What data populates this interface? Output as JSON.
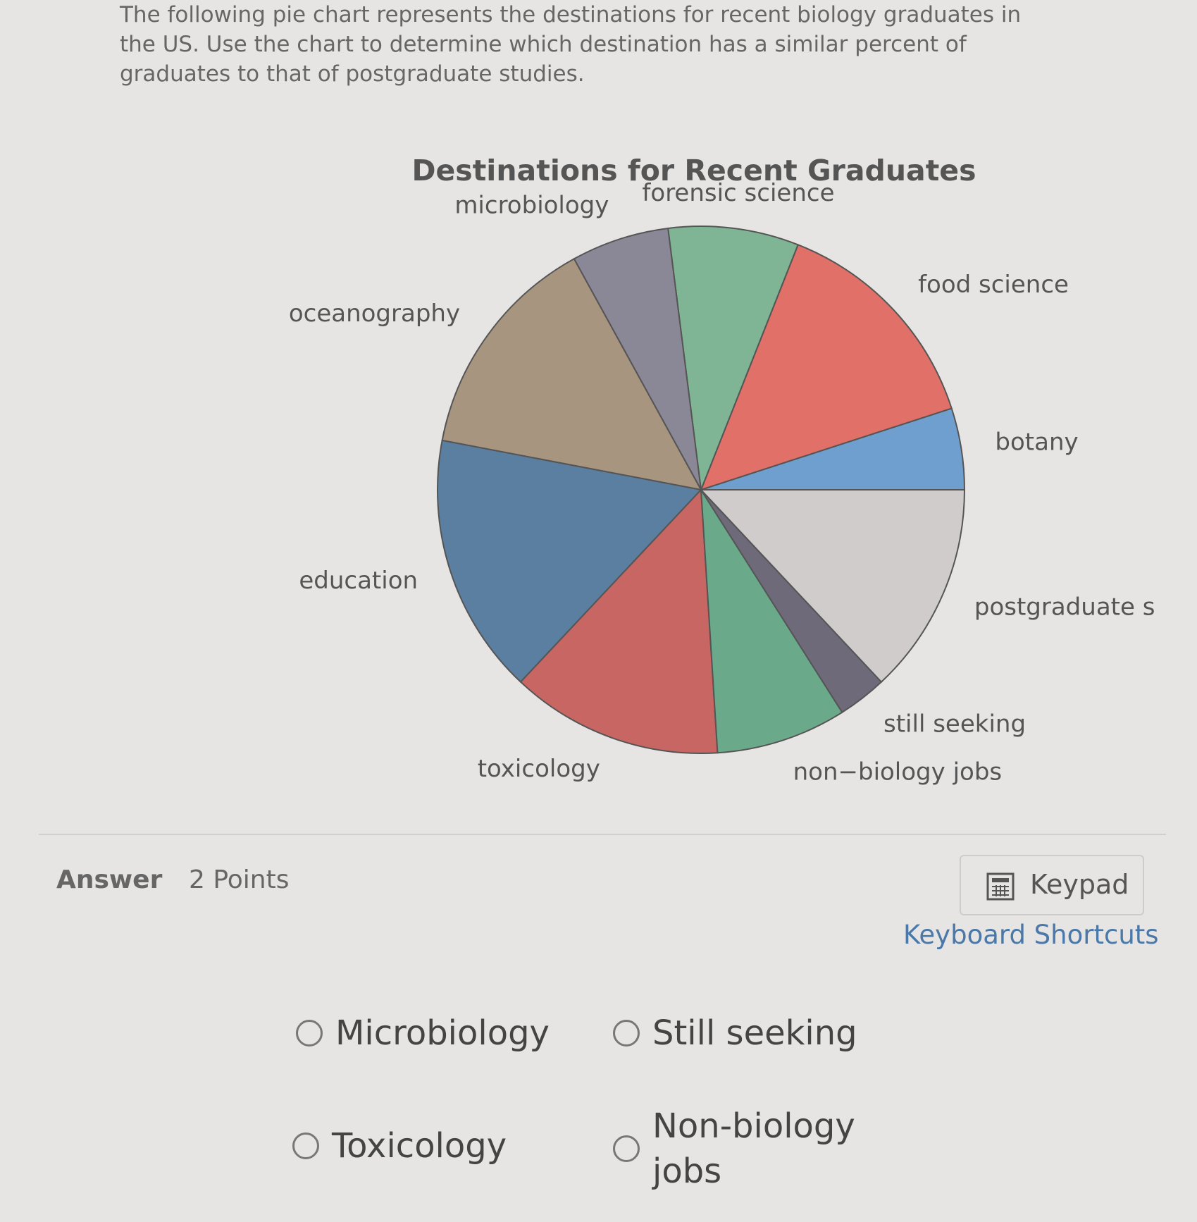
{
  "question": "The following pie chart represents the destinations for recent biology graduates in the US. Use the chart to determine which destination has a similar percent of graduates to that of postgraduate studies.",
  "chart_data": {
    "type": "pie",
    "title": "Destinations for Recent Graduates",
    "categories": [
      "botany",
      "food science",
      "forensic science",
      "microbiology",
      "oceanography",
      "education",
      "toxicology",
      "non−biology jobs",
      "still seeking",
      "postgraduate s"
    ],
    "values": [
      5,
      14,
      8,
      6,
      14,
      16,
      13,
      8,
      3,
      13
    ],
    "colors": [
      "#6f9fcf",
      "#e07068",
      "#7fb595",
      "#8a8896",
      "#a89580",
      "#5b7fa0",
      "#c76662",
      "#6aaa8a",
      "#6e6a7a",
      "#cfcccb"
    ]
  },
  "answer": {
    "label": "Answer",
    "points": "2 Points",
    "keypad": "Keypad",
    "shortcuts": "Keyboard Shortcuts",
    "options": [
      "Microbiology",
      "Still seeking",
      "Toxicology",
      "Non-biology jobs"
    ]
  }
}
